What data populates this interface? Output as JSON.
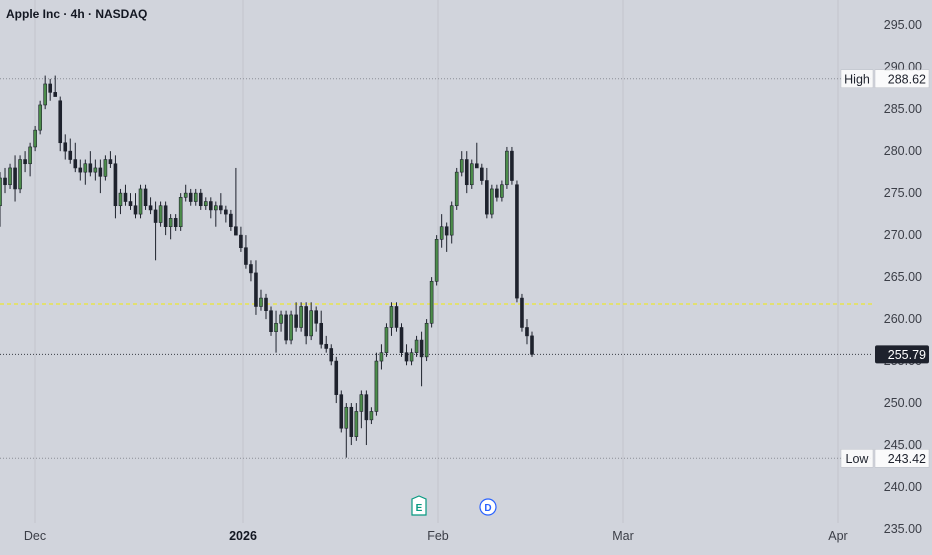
{
  "title": "Apple Inc · 4h · NASDAQ",
  "chart_data": {
    "type": "candlestick",
    "y_ticks": [
      "295.00",
      "290.00",
      "285.00",
      "280.00",
      "275.00",
      "270.00",
      "265.00",
      "260.00",
      "255.00",
      "250.00",
      "245.00",
      "240.00",
      "235.00"
    ],
    "x_ticks": [
      {
        "label": "Dec",
        "bold": false
      },
      {
        "label": "2026",
        "bold": true
      },
      {
        "label": "Feb",
        "bold": false
      },
      {
        "label": "Mar",
        "bold": false
      },
      {
        "label": "Apr",
        "bold": false
      }
    ],
    "ylim": [
      232.5,
      298
    ],
    "high": {
      "label": "High",
      "value": "288.62"
    },
    "low": {
      "label": "Low",
      "value": "243.42"
    },
    "last_price": "255.79",
    "reference_line": 261.8,
    "event_markers": [
      "E",
      "D"
    ],
    "colors": {
      "up": "#4c8c4a",
      "down": "#1e222d",
      "reference": "#e8e44c",
      "background": "#d1d4dc"
    },
    "candles": [
      [
        273.5,
        277.5,
        271.0,
        276.8
      ],
      [
        276.8,
        278.0,
        275.0,
        276.0
      ],
      [
        276.0,
        278.5,
        275.5,
        278.0
      ],
      [
        278.0,
        279.5,
        274.0,
        275.5
      ],
      [
        275.5,
        279.5,
        275.0,
        279.0
      ],
      [
        279.0,
        280.0,
        277.5,
        278.5
      ],
      [
        278.5,
        281.0,
        277.0,
        280.5
      ],
      [
        280.5,
        283.0,
        280.0,
        282.5
      ],
      [
        282.5,
        286.0,
        282.0,
        285.5
      ],
      [
        285.5,
        289.0,
        285.0,
        288.0
      ],
      [
        288.0,
        288.6,
        286.0,
        287.0
      ],
      [
        287.0,
        289.0,
        286.5,
        286.5
      ],
      [
        286.0,
        286.5,
        280.0,
        281.0
      ],
      [
        281.0,
        282.0,
        279.0,
        280.0
      ],
      [
        280.0,
        281.5,
        278.5,
        279.0
      ],
      [
        279.0,
        281.0,
        277.5,
        278.0
      ],
      [
        278.0,
        279.0,
        276.5,
        277.5
      ],
      [
        277.5,
        279.0,
        276.0,
        278.5
      ],
      [
        278.5,
        280.0,
        277.0,
        277.5
      ],
      [
        277.5,
        279.0,
        276.5,
        278.0
      ],
      [
        278.0,
        279.0,
        275.0,
        277.0
      ],
      [
        277.0,
        279.5,
        276.5,
        279.0
      ],
      [
        279.0,
        280.0,
        278.0,
        278.5
      ],
      [
        278.5,
        279.5,
        272.0,
        273.5
      ],
      [
        273.5,
        275.5,
        272.5,
        275.0
      ],
      [
        275.0,
        276.0,
        273.5,
        274.0
      ],
      [
        274.0,
        275.0,
        273.0,
        273.5
      ],
      [
        273.5,
        275.0,
        272.0,
        272.5
      ],
      [
        272.5,
        276.0,
        272.0,
        275.5
      ],
      [
        275.5,
        276.0,
        273.0,
        273.5
      ],
      [
        273.5,
        274.5,
        272.5,
        273.0
      ],
      [
        273.0,
        274.0,
        267.0,
        271.5
      ],
      [
        271.5,
        274.0,
        271.0,
        273.5
      ],
      [
        273.5,
        274.0,
        270.0,
        271.0
      ],
      [
        271.0,
        272.5,
        269.5,
        272.0
      ],
      [
        272.0,
        272.5,
        270.5,
        271.0
      ],
      [
        271.0,
        275.0,
        270.5,
        274.5
      ],
      [
        274.5,
        276.0,
        274.0,
        275.0
      ],
      [
        275.0,
        275.5,
        273.5,
        274.0
      ],
      [
        274.0,
        275.5,
        273.5,
        275.0
      ],
      [
        275.0,
        275.5,
        273.0,
        273.5
      ],
      [
        273.5,
        274.5,
        273.0,
        274.0
      ],
      [
        274.0,
        274.5,
        272.0,
        273.0
      ],
      [
        273.0,
        274.0,
        271.0,
        273.5
      ],
      [
        273.5,
        275.0,
        272.5,
        273.0
      ],
      [
        273.0,
        273.5,
        271.5,
        272.5
      ],
      [
        272.5,
        273.0,
        270.5,
        271.0
      ],
      [
        271.0,
        278.0,
        270.0,
        270.0
      ],
      [
        270.0,
        271.0,
        268.0,
        268.5
      ],
      [
        268.5,
        270.0,
        266.0,
        266.5
      ],
      [
        266.5,
        267.0,
        264.5,
        265.5
      ],
      [
        265.5,
        267.0,
        260.5,
        261.5
      ],
      [
        261.5,
        263.5,
        261.0,
        262.5
      ],
      [
        262.5,
        263.0,
        260.0,
        261.0
      ],
      [
        261.0,
        261.5,
        258.0,
        258.5
      ],
      [
        258.5,
        261.0,
        256.0,
        259.5
      ],
      [
        259.5,
        261.0,
        258.5,
        260.5
      ],
      [
        260.5,
        261.0,
        257.0,
        257.5
      ],
      [
        257.5,
        261.0,
        257.0,
        260.5
      ],
      [
        260.5,
        262.0,
        258.5,
        259.0
      ],
      [
        259.0,
        262.0,
        258.5,
        261.5
      ],
      [
        261.5,
        262.0,
        257.0,
        258.0
      ],
      [
        258.0,
        262.0,
        257.5,
        261.0
      ],
      [
        261.0,
        261.5,
        258.5,
        259.5
      ],
      [
        259.5,
        261.0,
        256.5,
        257.0
      ],
      [
        257.0,
        258.0,
        256.0,
        256.5
      ],
      [
        256.5,
        257.0,
        254.5,
        255.0
      ],
      [
        255.0,
        255.5,
        250.0,
        251.0
      ],
      [
        251.0,
        251.5,
        246.5,
        247.0
      ],
      [
        247.0,
        250.0,
        243.5,
        249.5
      ],
      [
        249.5,
        250.0,
        245.0,
        246.0
      ],
      [
        246.0,
        250.0,
        245.5,
        249.0
      ],
      [
        249.0,
        251.5,
        247.0,
        251.0
      ],
      [
        251.0,
        251.5,
        245.0,
        248.0
      ],
      [
        248.0,
        249.5,
        247.5,
        249.0
      ],
      [
        249.0,
        256.0,
        248.5,
        255.0
      ],
      [
        255.0,
        257.0,
        254.0,
        256.0
      ],
      [
        256.0,
        259.5,
        255.5,
        259.0
      ],
      [
        259.0,
        262.0,
        258.0,
        261.5
      ],
      [
        261.5,
        262.0,
        258.5,
        259.0
      ],
      [
        259.0,
        259.5,
        255.5,
        256.0
      ],
      [
        256.0,
        257.0,
        254.5,
        255.0
      ],
      [
        255.0,
        256.5,
        254.5,
        256.0
      ],
      [
        256.0,
        258.0,
        255.5,
        257.5
      ],
      [
        257.5,
        258.5,
        252.0,
        255.5
      ],
      [
        255.5,
        260.0,
        255.0,
        259.5
      ],
      [
        259.5,
        265.0,
        259.0,
        264.5
      ],
      [
        264.5,
        270.0,
        264.0,
        269.5
      ],
      [
        269.5,
        272.5,
        268.5,
        271.0
      ],
      [
        271.0,
        271.5,
        268.0,
        270.0
      ],
      [
        270.0,
        274.0,
        269.0,
        273.5
      ],
      [
        273.5,
        278.0,
        273.0,
        277.5
      ],
      [
        277.5,
        280.0,
        277.0,
        279.0
      ],
      [
        279.0,
        280.0,
        275.0,
        276.0
      ],
      [
        276.0,
        279.0,
        275.5,
        278.5
      ],
      [
        278.5,
        281.0,
        278.0,
        278.0
      ],
      [
        278.0,
        278.5,
        276.0,
        276.5
      ],
      [
        276.5,
        278.0,
        272.0,
        272.5
      ],
      [
        272.5,
        276.0,
        272.0,
        275.5
      ],
      [
        275.5,
        276.0,
        274.0,
        274.5
      ],
      [
        274.5,
        276.5,
        274.0,
        276.0
      ],
      [
        276.0,
        280.5,
        275.5,
        280.0
      ],
      [
        280.0,
        280.5,
        276.0,
        276.5
      ],
      [
        276.0,
        276.5,
        262.0,
        262.5
      ],
      [
        262.5,
        263.0,
        258.5,
        259.0
      ],
      [
        259.0,
        260.0,
        257.0,
        258.0
      ],
      [
        258.0,
        258.5,
        255.5,
        255.8
      ]
    ]
  }
}
